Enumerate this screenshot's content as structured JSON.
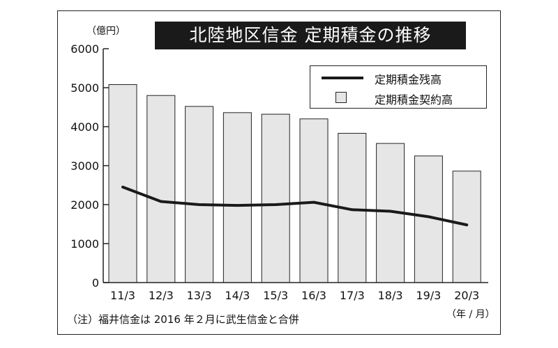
{
  "chart_data": {
    "type": "bar",
    "title": "北陸地区信金 定期積金の推移",
    "y_unit": "（億円）",
    "x_unit": "（年 / 月）",
    "categories": [
      "11/3",
      "12/3",
      "13/3",
      "14/3",
      "15/3",
      "16/3",
      "17/3",
      "18/3",
      "19/3",
      "20/3"
    ],
    "series": [
      {
        "name": "定期積金契約高",
        "type": "bar",
        "color": "#e6e6e6",
        "values": [
          5080,
          4800,
          4520,
          4360,
          4320,
          4200,
          3830,
          3570,
          3250,
          2860
        ]
      },
      {
        "name": "定期積金残高",
        "type": "line",
        "color": "#1a1a1a",
        "values": [
          2450,
          2080,
          2000,
          1980,
          2000,
          2060,
          1870,
          1830,
          1690,
          1480
        ]
      }
    ],
    "ylim": [
      0,
      6000
    ],
    "yticks": [
      "0",
      "1000",
      "2000",
      "3000",
      "4000",
      "5000",
      "6000"
    ],
    "grid": false,
    "legend_position": "top-right"
  },
  "note": "（注）福井信金は 2016 年２月に武生信金と合併"
}
